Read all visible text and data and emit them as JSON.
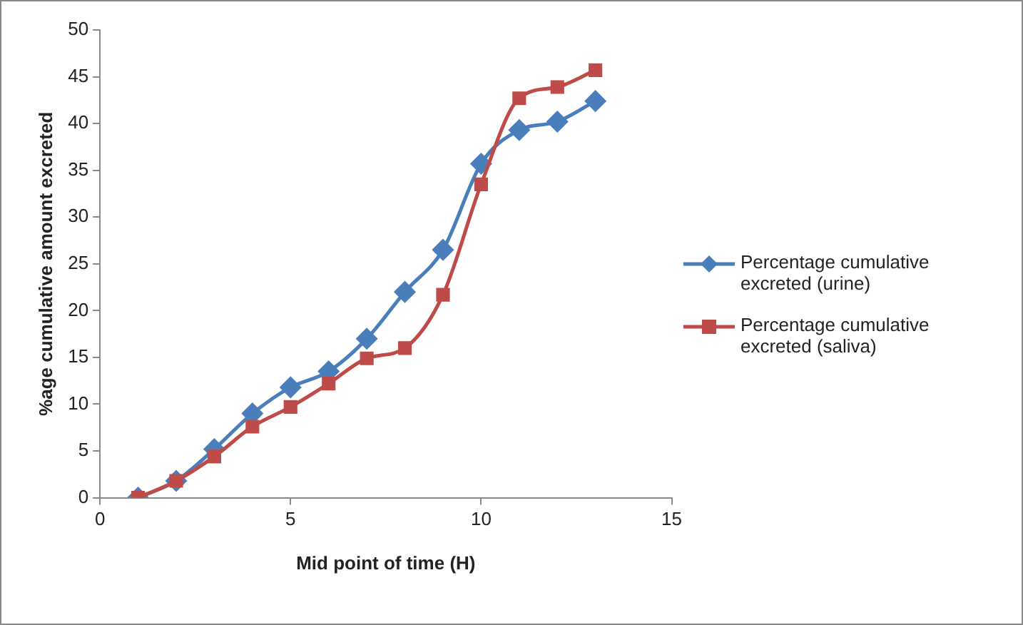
{
  "chart_data": {
    "type": "line",
    "xlabel": "Mid point of time (H)",
    "ylabel": "%age cumulative amount excreted",
    "x": [
      1,
      2,
      3,
      4,
      5,
      6,
      7,
      8,
      9,
      10,
      11,
      12,
      13
    ],
    "xlim": [
      0,
      15
    ],
    "xticks": [
      0,
      5,
      10,
      15
    ],
    "ylim": [
      0,
      50
    ],
    "yticks": [
      0,
      5,
      10,
      15,
      20,
      25,
      30,
      35,
      40,
      45,
      50
    ],
    "grid": false,
    "legend": "right",
    "series": [
      {
        "name": "Percentage cumulative excreted (urine)",
        "color": "#4a7ebb",
        "marker": "diamond",
        "values": [
          0,
          1.8,
          5.2,
          9,
          11.8,
          13.5,
          17,
          22,
          26.5,
          35.7,
          39.3,
          40.2,
          42.4
        ]
      },
      {
        "name": "Percentage cumulative excreted (saliva)",
        "color": "#be4b48",
        "marker": "square",
        "values": [
          0,
          1.8,
          4.4,
          7.6,
          9.7,
          12.2,
          14.9,
          16,
          21.7,
          33.5,
          42.7,
          43.9,
          45.7
        ]
      }
    ]
  }
}
